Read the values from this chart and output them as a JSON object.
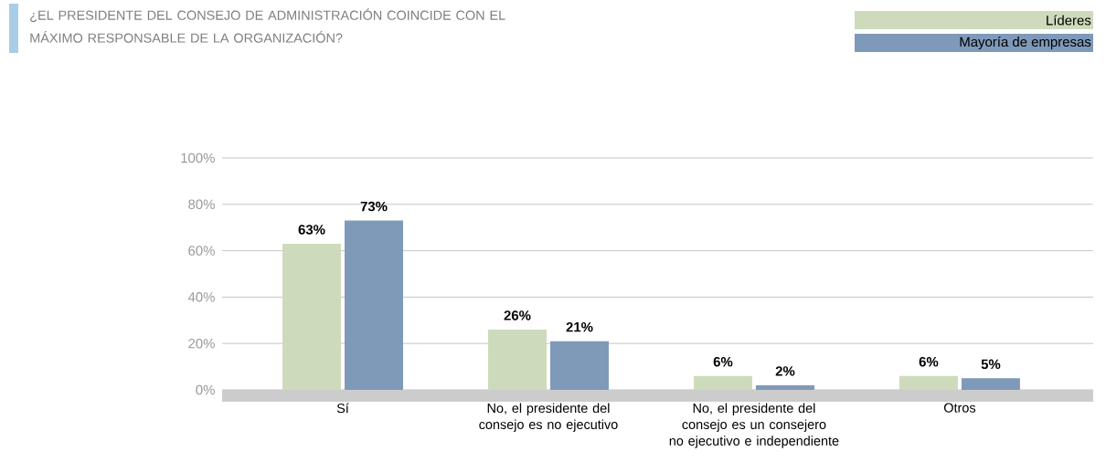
{
  "chart_data": {
    "type": "bar",
    "title": "¿EL PRESIDENTE DEL CONSEJO DE ADMINISTRACIÓN COINCIDE CON EL MÁXIMO RESPONSABLE DE LA ORGANIZACIÓN?",
    "categories": [
      "Sí",
      "No, el presidente del consejo es no ejecutivo",
      "No, el presidente del consejo es un consejero no ejecutivo e independiente",
      "Otros"
    ],
    "series": [
      {
        "name": "Líderes",
        "color": "#cddbbc",
        "values": [
          63,
          26,
          6,
          6
        ],
        "value_labels": [
          "63%",
          "26%",
          "6%",
          "6%"
        ]
      },
      {
        "name": "Mayoría de empresas",
        "color": "#7f99b9",
        "values": [
          73,
          21,
          2,
          5
        ],
        "value_labels": [
          "73%",
          "21%",
          "2%",
          "5%"
        ]
      }
    ],
    "ylim": [
      0,
      100
    ],
    "yticks": [
      {
        "value": 0,
        "label": "0%"
      },
      {
        "value": 20,
        "label": "20%"
      },
      {
        "value": 40,
        "label": "40%"
      },
      {
        "value": 60,
        "label": "60%"
      },
      {
        "value": 80,
        "label": "80%"
      },
      {
        "value": 100,
        "label": "100%"
      }
    ],
    "grid": "y",
    "legend": "top right"
  }
}
